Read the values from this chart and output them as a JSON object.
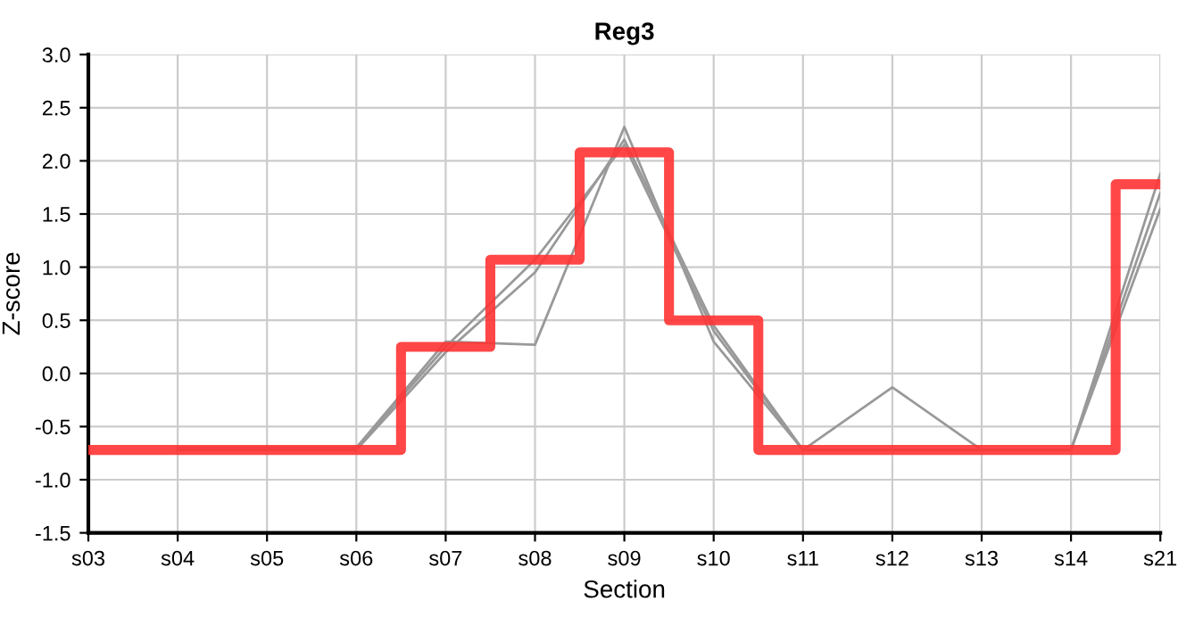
{
  "chart_data": {
    "type": "line",
    "title": "Reg3",
    "xlabel": "Section",
    "ylabel": "Z-score",
    "categories": [
      "s03",
      "s04",
      "s05",
      "s06",
      "s07",
      "s08",
      "s09",
      "s10",
      "s11",
      "s12",
      "s13",
      "s14",
      "s21"
    ],
    "series": [
      {
        "color": "#999999",
        "values": [
          null,
          -0.7,
          -0.7,
          -0.7,
          0.3,
          0.27,
          2.32,
          0.3,
          -0.72,
          -0.72,
          -0.72,
          -0.72,
          1.88
        ]
      },
      {
        "color": "#999999",
        "values": [
          null,
          -0.72,
          -0.72,
          -0.72,
          0.2,
          0.95,
          2.2,
          0.45,
          -0.72,
          -0.13,
          -0.72,
          -0.72,
          1.7
        ]
      },
      {
        "color": "#999999",
        "values": [
          null,
          -0.72,
          -0.72,
          -0.7,
          0.25,
          1.07,
          2.15,
          0.4,
          -0.72,
          -0.72,
          -0.72,
          -0.72,
          1.55
        ]
      },
      {
        "type": "step",
        "color": "#ff3333",
        "values": [
          -0.72,
          -0.72,
          -0.72,
          -0.72,
          0.25,
          1.07,
          2.08,
          0.5,
          -0.72,
          -0.72,
          -0.72,
          -0.72,
          1.78
        ]
      }
    ],
    "ylim": [
      -1.5,
      3.0
    ],
    "yticks": [
      {
        "value": -1.5,
        "label": "-1.5"
      },
      {
        "value": -1.0,
        "label": "-1.0"
      },
      {
        "value": -0.5,
        "label": "-0.5"
      },
      {
        "value": 0.0,
        "label": "0.0"
      },
      {
        "value": 0.5,
        "label": "0.5"
      },
      {
        "value": 1.0,
        "label": "1.0"
      },
      {
        "value": 1.5,
        "label": "1.5"
      },
      {
        "value": 2.0,
        "label": "2.0"
      },
      {
        "value": 2.5,
        "label": "2.5"
      },
      {
        "value": 3.0,
        "label": "3.0"
      }
    ],
    "grid": true
  }
}
